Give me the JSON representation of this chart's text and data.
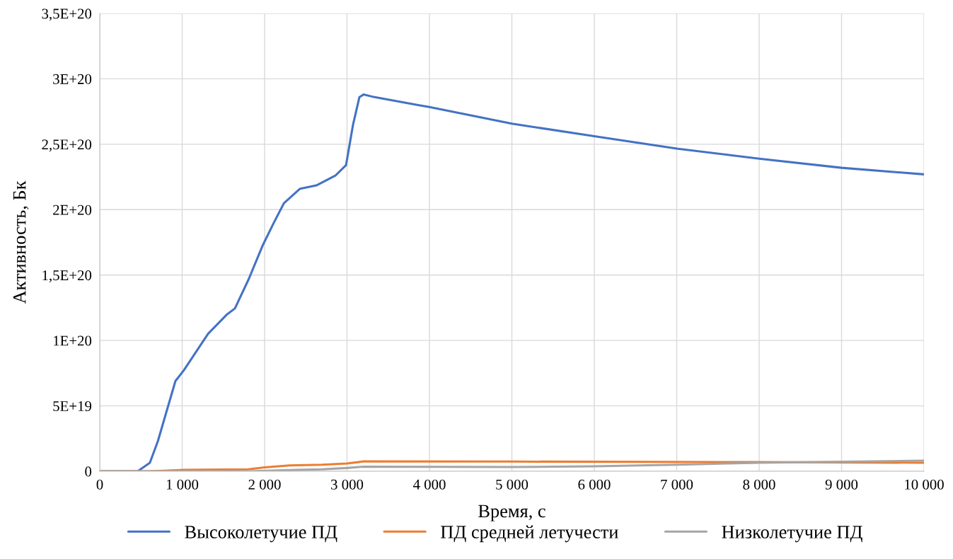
{
  "chart_data": {
    "type": "line",
    "xlabel": "Время, с",
    "ylabel": "Активность, Бк",
    "xlim": [
      0,
      10000
    ],
    "xticks": [
      0,
      {
        "value": 1000,
        "label": "1 000"
      },
      {
        "value": 2000,
        "label": "2 000"
      },
      {
        "value": 3000,
        "label": "3 000"
      },
      {
        "value": 4000,
        "label": "4 000"
      },
      {
        "value": 5000,
        "label": "5 000"
      },
      {
        "value": 6000,
        "label": "6 000"
      },
      {
        "value": 7000,
        "label": "7 000"
      },
      {
        "value": 8000,
        "label": "8 000"
      },
      {
        "value": 9000,
        "label": "9 000"
      },
      {
        "value": 10000,
        "label": "10 000"
      }
    ],
    "ylim": [
      0,
      3.5e+20
    ],
    "yticks": [
      0,
      {
        "value": 5e+19,
        "label": "5E+19"
      },
      {
        "value": 1e+20,
        "label": "1E+20"
      },
      {
        "value": 1.5e+20,
        "label": "1,5E+20"
      },
      {
        "value": 2e+20,
        "label": "2E+20"
      },
      {
        "value": 2.5e+20,
        "label": "2,5E+20"
      },
      {
        "value": 3e+20,
        "label": "3E+20"
      },
      {
        "value": 3.5e+20,
        "label": "3,5E+20"
      }
    ],
    "grid": true,
    "legend": "bottom",
    "marker": "none",
    "line_style": "solid",
    "series": [
      {
        "name": "Высоколетучие ПД",
        "color": "#4472c4",
        "x": [
          0,
          460,
          608,
          705,
          821,
          918,
          1018,
          1313,
          1545,
          1640,
          1808,
          1972,
          2104,
          2235,
          2430,
          2627,
          2858,
          2988,
          3073,
          3150,
          3200,
          3301,
          3863,
          4000,
          5000,
          6000,
          7000,
          8000,
          9000,
          10000
        ],
        "values": [
          0,
          0,
          6.5e+18,
          2.3e+19,
          4.8e+19,
          6.9e+19,
          7.7e+19,
          1.05e+20,
          1.2e+20,
          1.245e+20,
          1.47e+20,
          1.72e+20,
          1.89e+20,
          2.05e+20,
          2.16e+20,
          2.185e+20,
          2.26e+20,
          2.34e+20,
          2.65e+20,
          2.86e+20,
          2.88e+20,
          2.865e+20,
          2.8e+20,
          2.784e+20,
          2.657e+20,
          2.562e+20,
          2.467e+20,
          2.39e+20,
          2.32e+20,
          2.27e+20
        ]
      },
      {
        "name": "ПД средней летучести",
        "color": "#ed7d31",
        "x": [
          0,
          600,
          1000,
          1800,
          2000,
          2300,
          2700,
          3000,
          3200,
          5000,
          8000,
          10000
        ],
        "values": [
          0,
          0,
          1e+18,
          1.5e+18,
          3e+18,
          4.5e+18,
          5e+18,
          6e+18,
          7.5e+18,
          7.4e+18,
          7e+18,
          6.5e+18
        ]
      },
      {
        "name": "Низколетучие ПД",
        "color": "#a5a5a5",
        "x": [
          0,
          1800,
          2400,
          2700,
          3000,
          3200,
          5000,
          6000,
          7000,
          8000,
          9000,
          10000
        ],
        "values": [
          0,
          0,
          1e+18,
          1.5e+18,
          2.5e+18,
          3.5e+18,
          3.2e+18,
          3.8e+18,
          5e+18,
          6.5e+18,
          7.3e+18,
          8.1e+18
        ]
      }
    ]
  }
}
